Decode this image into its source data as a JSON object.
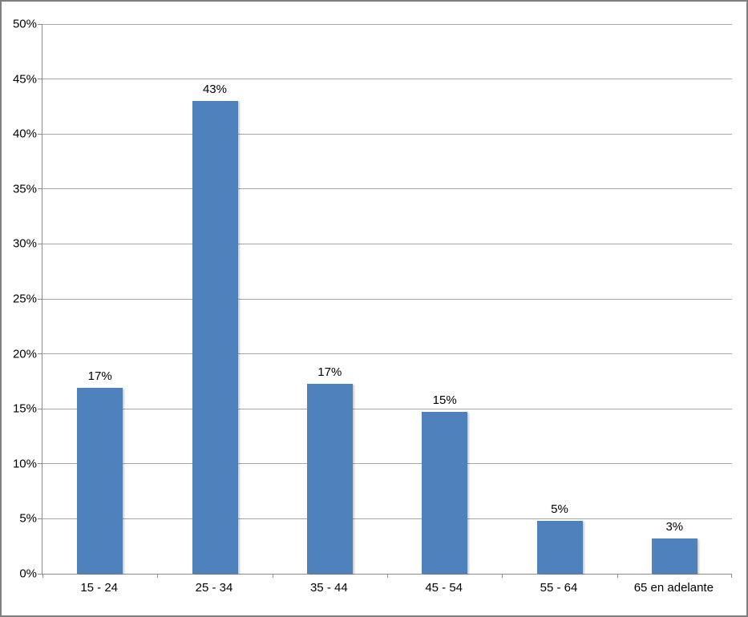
{
  "chart_data": {
    "type": "bar",
    "title": "",
    "xlabel": "",
    "ylabel": "",
    "categories": [
      "15 - 24",
      "25 - 34",
      "35 - 44",
      "45 - 54",
      "55 - 64",
      "65 en adelante"
    ],
    "values": [
      16.9,
      43.0,
      17.3,
      14.7,
      4.8,
      3.2
    ],
    "data_labels": [
      "17%",
      "43%",
      "17%",
      "15%",
      "5%",
      "3%"
    ],
    "ylim": [
      0,
      50
    ],
    "y_ticks": [
      0,
      5,
      10,
      15,
      20,
      25,
      30,
      35,
      40,
      45,
      50
    ],
    "y_tick_labels": [
      "0%",
      "5%",
      "10%",
      "15%",
      "20%",
      "25%",
      "30%",
      "35%",
      "40%",
      "45%",
      "50%"
    ],
    "grid": true,
    "legend": false,
    "colors": {
      "bar": "#4F81BD",
      "gridline": "#A6A6A6",
      "axis": "#8C8C8C",
      "frame_border": "#7F7F7F",
      "label_text": "#000000",
      "background": "#FFFFFF"
    }
  }
}
